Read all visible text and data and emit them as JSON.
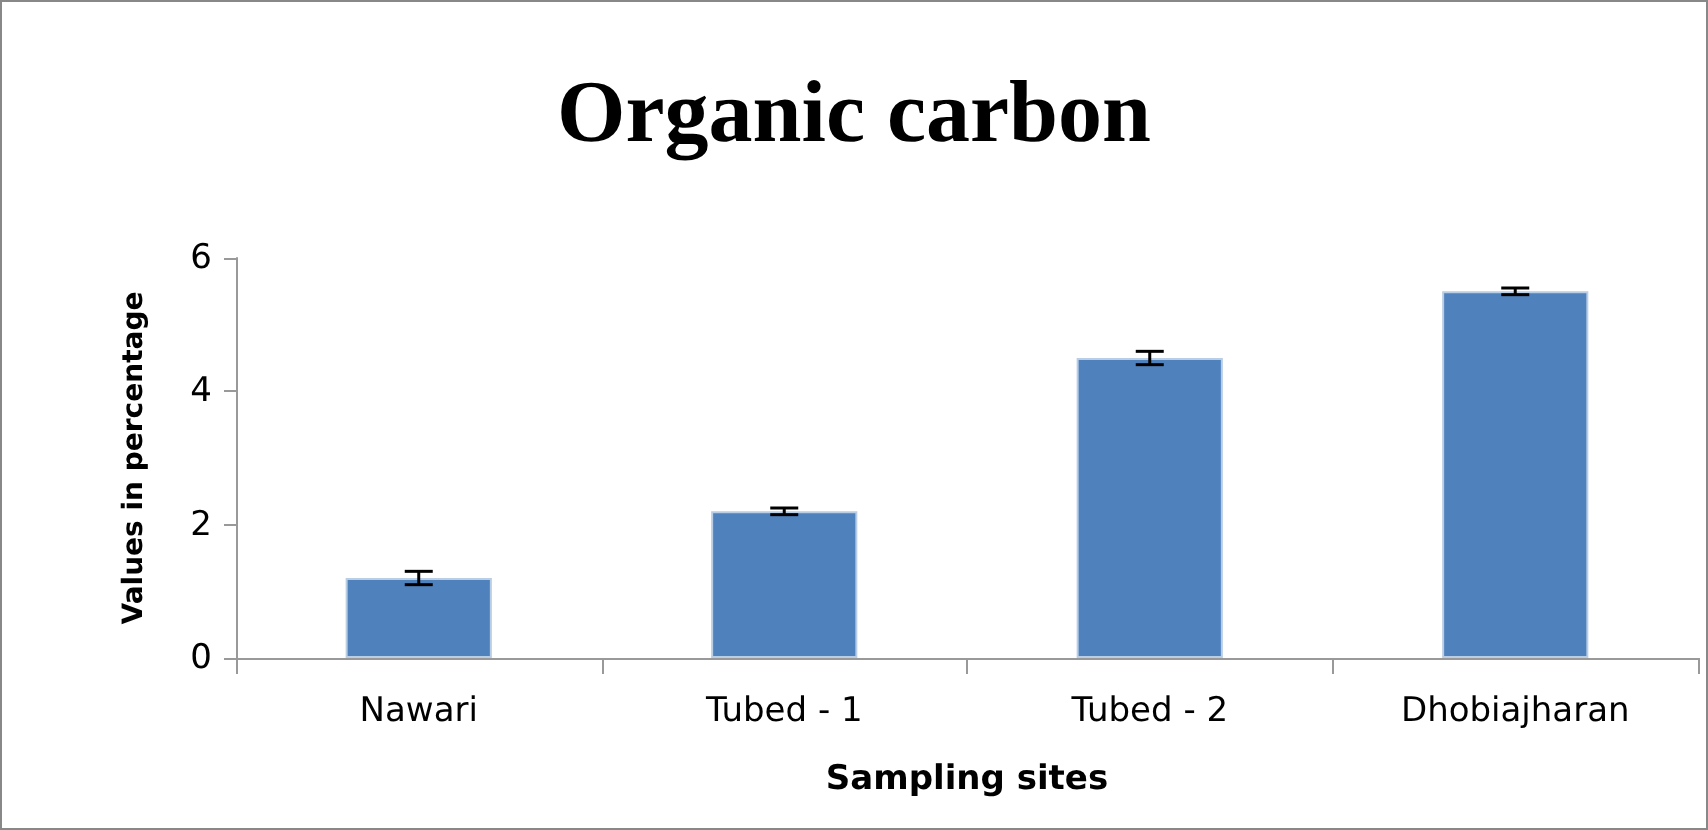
{
  "chart_data": {
    "type": "bar",
    "title": "Organic carbon",
    "xlabel": "Sampling sites",
    "ylabel": "Values in percentage",
    "categories": [
      "Nawari",
      "Tubed - 1",
      "Tubed - 2",
      "Dhobiajharan"
    ],
    "values": [
      1.2,
      2.2,
      4.5,
      5.5
    ],
    "errors": [
      0.1,
      0.05,
      0.1,
      0.05
    ],
    "color": "#4f81bd",
    "ylim": [
      0,
      6
    ],
    "yticks": [
      0,
      2,
      4,
      6
    ],
    "grid": false
  }
}
